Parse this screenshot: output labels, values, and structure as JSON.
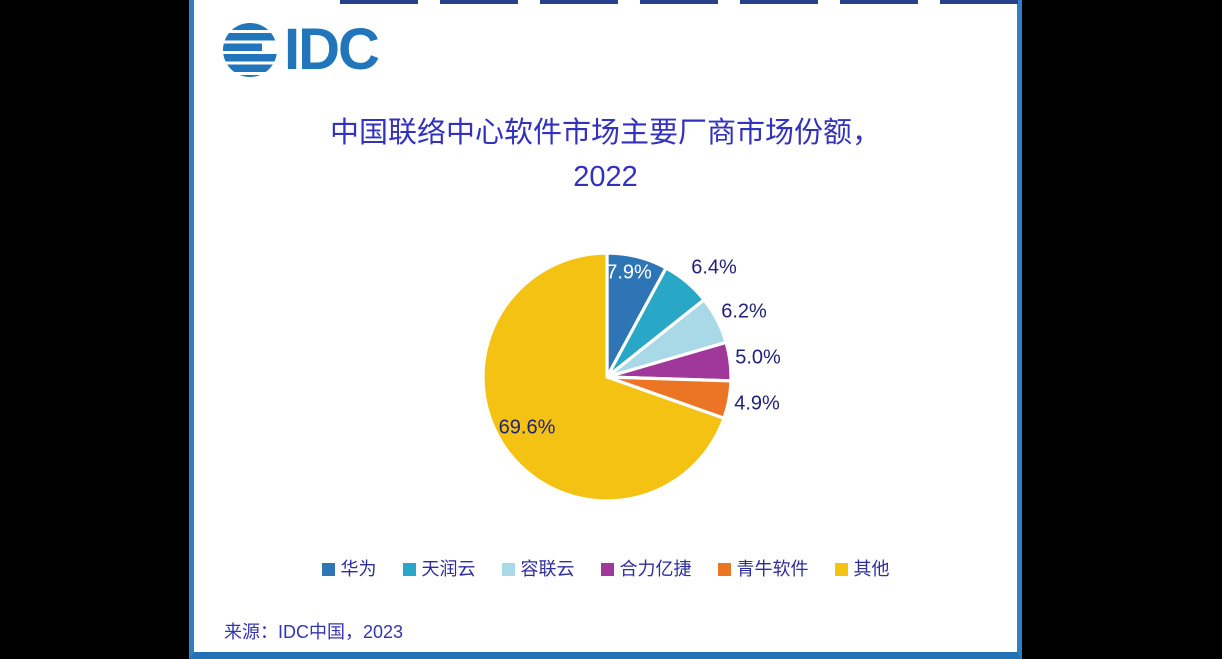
{
  "page": {
    "outer_background": "#000000",
    "panel_background": "#ffffff",
    "frame_color": "#2F80C3"
  },
  "logo": {
    "text": "IDC",
    "color": "#2175BB",
    "icon": "globe-stripes-icon"
  },
  "title": {
    "line1": "中国联络中心软件市场主要厂商市场份额，",
    "line2": "2022",
    "color": "#3232BE"
  },
  "chart_data": {
    "type": "pie",
    "title": "中国联络中心软件市场主要厂商市场份额，2022",
    "unit": "%",
    "start_angle": "12 o'clock",
    "direction": "clockwise",
    "legend_position": "bottom",
    "slice_separator_color": "#ffffff",
    "label_color": "#212178",
    "slices": [
      {
        "name": "华为",
        "value": 7.9,
        "label": "7.9%",
        "color": "#2E75B6",
        "label_inside": true,
        "label_color": "#ffffff"
      },
      {
        "name": "天润云",
        "value": 6.4,
        "label": "6.4%",
        "color": "#28A7C6",
        "label_inside": false,
        "label_color": "#212178"
      },
      {
        "name": "容联云",
        "value": 6.2,
        "label": "6.2%",
        "color": "#A9D8E6",
        "label_inside": false,
        "label_color": "#212178"
      },
      {
        "name": "合力亿捷",
        "value": 5.0,
        "label": "5.0%",
        "color": "#A0389B",
        "label_inside": false,
        "label_color": "#212178"
      },
      {
        "name": "青牛软件",
        "value": 4.9,
        "label": "4.9%",
        "color": "#EB7524",
        "label_inside": false,
        "label_color": "#212178"
      },
      {
        "name": "其他",
        "value": 69.6,
        "label": "69.6%",
        "color": "#F3C213",
        "label_inside": true,
        "label_color": "#212178"
      }
    ]
  },
  "source": {
    "text": "来源：IDC中国，2023"
  }
}
